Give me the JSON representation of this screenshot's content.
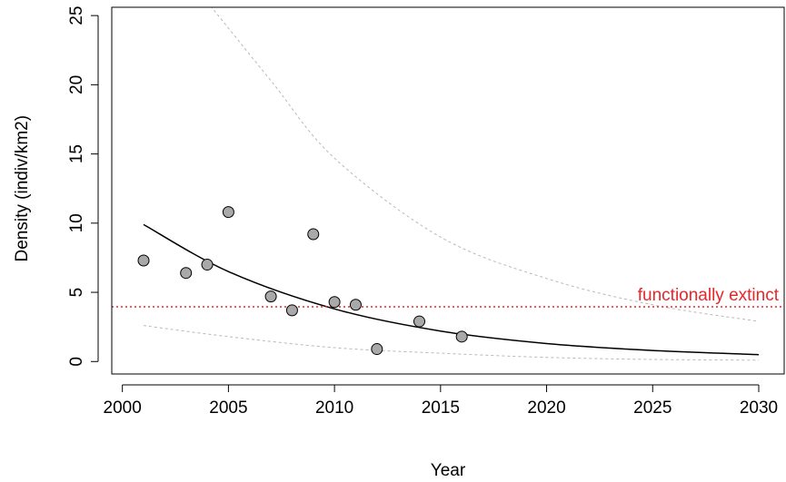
{
  "chart_data": {
    "type": "scatter",
    "xlabel": "Year",
    "ylabel": "Density (indiv/km2)",
    "xlim": [
      1999.5,
      2031.2
    ],
    "ylim": [
      -0.9,
      25.6
    ],
    "x_ticks": [
      2000,
      2005,
      2010,
      2015,
      2020,
      2025,
      2030
    ],
    "y_ticks": [
      0,
      5,
      10,
      15,
      20,
      25
    ],
    "grid": false,
    "legend": "none",
    "series": [
      {
        "kind": "points",
        "color": "#a9a9a9",
        "points": [
          {
            "x": 2001,
            "y": 7.3
          },
          {
            "x": 2003,
            "y": 6.4
          },
          {
            "x": 2004,
            "y": 7.0
          },
          {
            "x": 2005,
            "y": 10.8
          },
          {
            "x": 2007,
            "y": 4.7
          },
          {
            "x": 2008,
            "y": 3.7
          },
          {
            "x": 2009,
            "y": 9.2
          },
          {
            "x": 2010,
            "y": 4.3
          },
          {
            "x": 2011,
            "y": 4.1
          },
          {
            "x": 2012,
            "y": 0.9
          },
          {
            "x": 2014,
            "y": 2.9
          },
          {
            "x": 2016,
            "y": 1.8
          }
        ]
      },
      {
        "kind": "fit",
        "color": "#000000",
        "points": [
          {
            "x": 2001,
            "y": 9.9
          },
          {
            "x": 2005,
            "y": 6.5
          },
          {
            "x": 2010,
            "y": 3.8
          },
          {
            "x": 2015,
            "y": 2.2
          },
          {
            "x": 2020,
            "y": 1.3
          },
          {
            "x": 2025,
            "y": 0.8
          },
          {
            "x": 2030,
            "y": 0.5
          }
        ]
      },
      {
        "kind": "upper-bound",
        "color": "#b8b8b8",
        "points": [
          {
            "x": 2004.0,
            "y": 26.0
          },
          {
            "x": 2007,
            "y": 20.3
          },
          {
            "x": 2010,
            "y": 14.7
          },
          {
            "x": 2015,
            "y": 9.0
          },
          {
            "x": 2020,
            "y": 6.0
          },
          {
            "x": 2025,
            "y": 4.1
          },
          {
            "x": 2030,
            "y": 2.9
          }
        ]
      },
      {
        "kind": "lower-bound",
        "color": "#b8b8b8",
        "points": [
          {
            "x": 2001,
            "y": 2.6
          },
          {
            "x": 2005,
            "y": 1.8
          },
          {
            "x": 2010,
            "y": 1.0
          },
          {
            "x": 2015,
            "y": 0.6
          },
          {
            "x": 2020,
            "y": 0.3
          },
          {
            "x": 2025,
            "y": 0.15
          },
          {
            "x": 2030,
            "y": 0.1
          }
        ]
      }
    ],
    "threshold": {
      "y": 3.95,
      "label": "functionally extinct",
      "color": "#e8262a"
    }
  }
}
